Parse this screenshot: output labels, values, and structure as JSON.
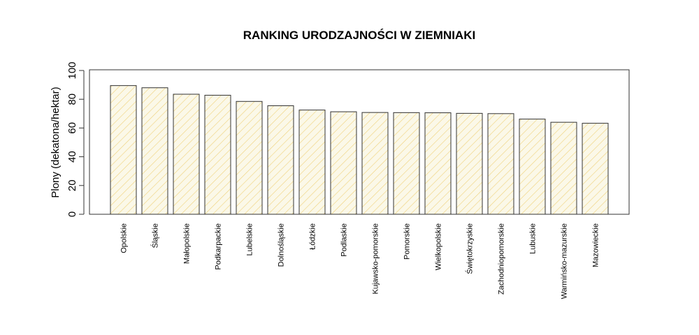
{
  "chart_data": {
    "type": "bar",
    "title": "RANKING URODZAJNOŚCI W ZIEMNIAKI",
    "xlabel": "",
    "ylabel": "Plony (dekatona/hektar)",
    "ylim": [
      0,
      100
    ],
    "yticks": [
      0,
      20,
      40,
      60,
      80,
      100
    ],
    "grid": false,
    "bar_fill": "#fbf8e8",
    "hatch_color": "#f0d27a",
    "bar_border": "#333333",
    "categories": [
      "Opolskie",
      "Śląskie",
      "Małopolskie",
      "Podkarpackie",
      "Lubelskie",
      "Dolnośląskie",
      "Łódzkie",
      "Podlaskie",
      "Kujawsko-pomorskie",
      "Pomorskie",
      "Wielkopolskie",
      "Świętokrzyskie",
      "Zachodniopomorskie",
      "Lubuskie",
      "Warmińsko-mazurskie",
      "Mazowieckie"
    ],
    "values": [
      89.5,
      88,
      83.5,
      82.8,
      78.5,
      75.5,
      72.5,
      71.3,
      70.8,
      70.7,
      70.6,
      70.2,
      70,
      66.2,
      64,
      63.3
    ]
  }
}
